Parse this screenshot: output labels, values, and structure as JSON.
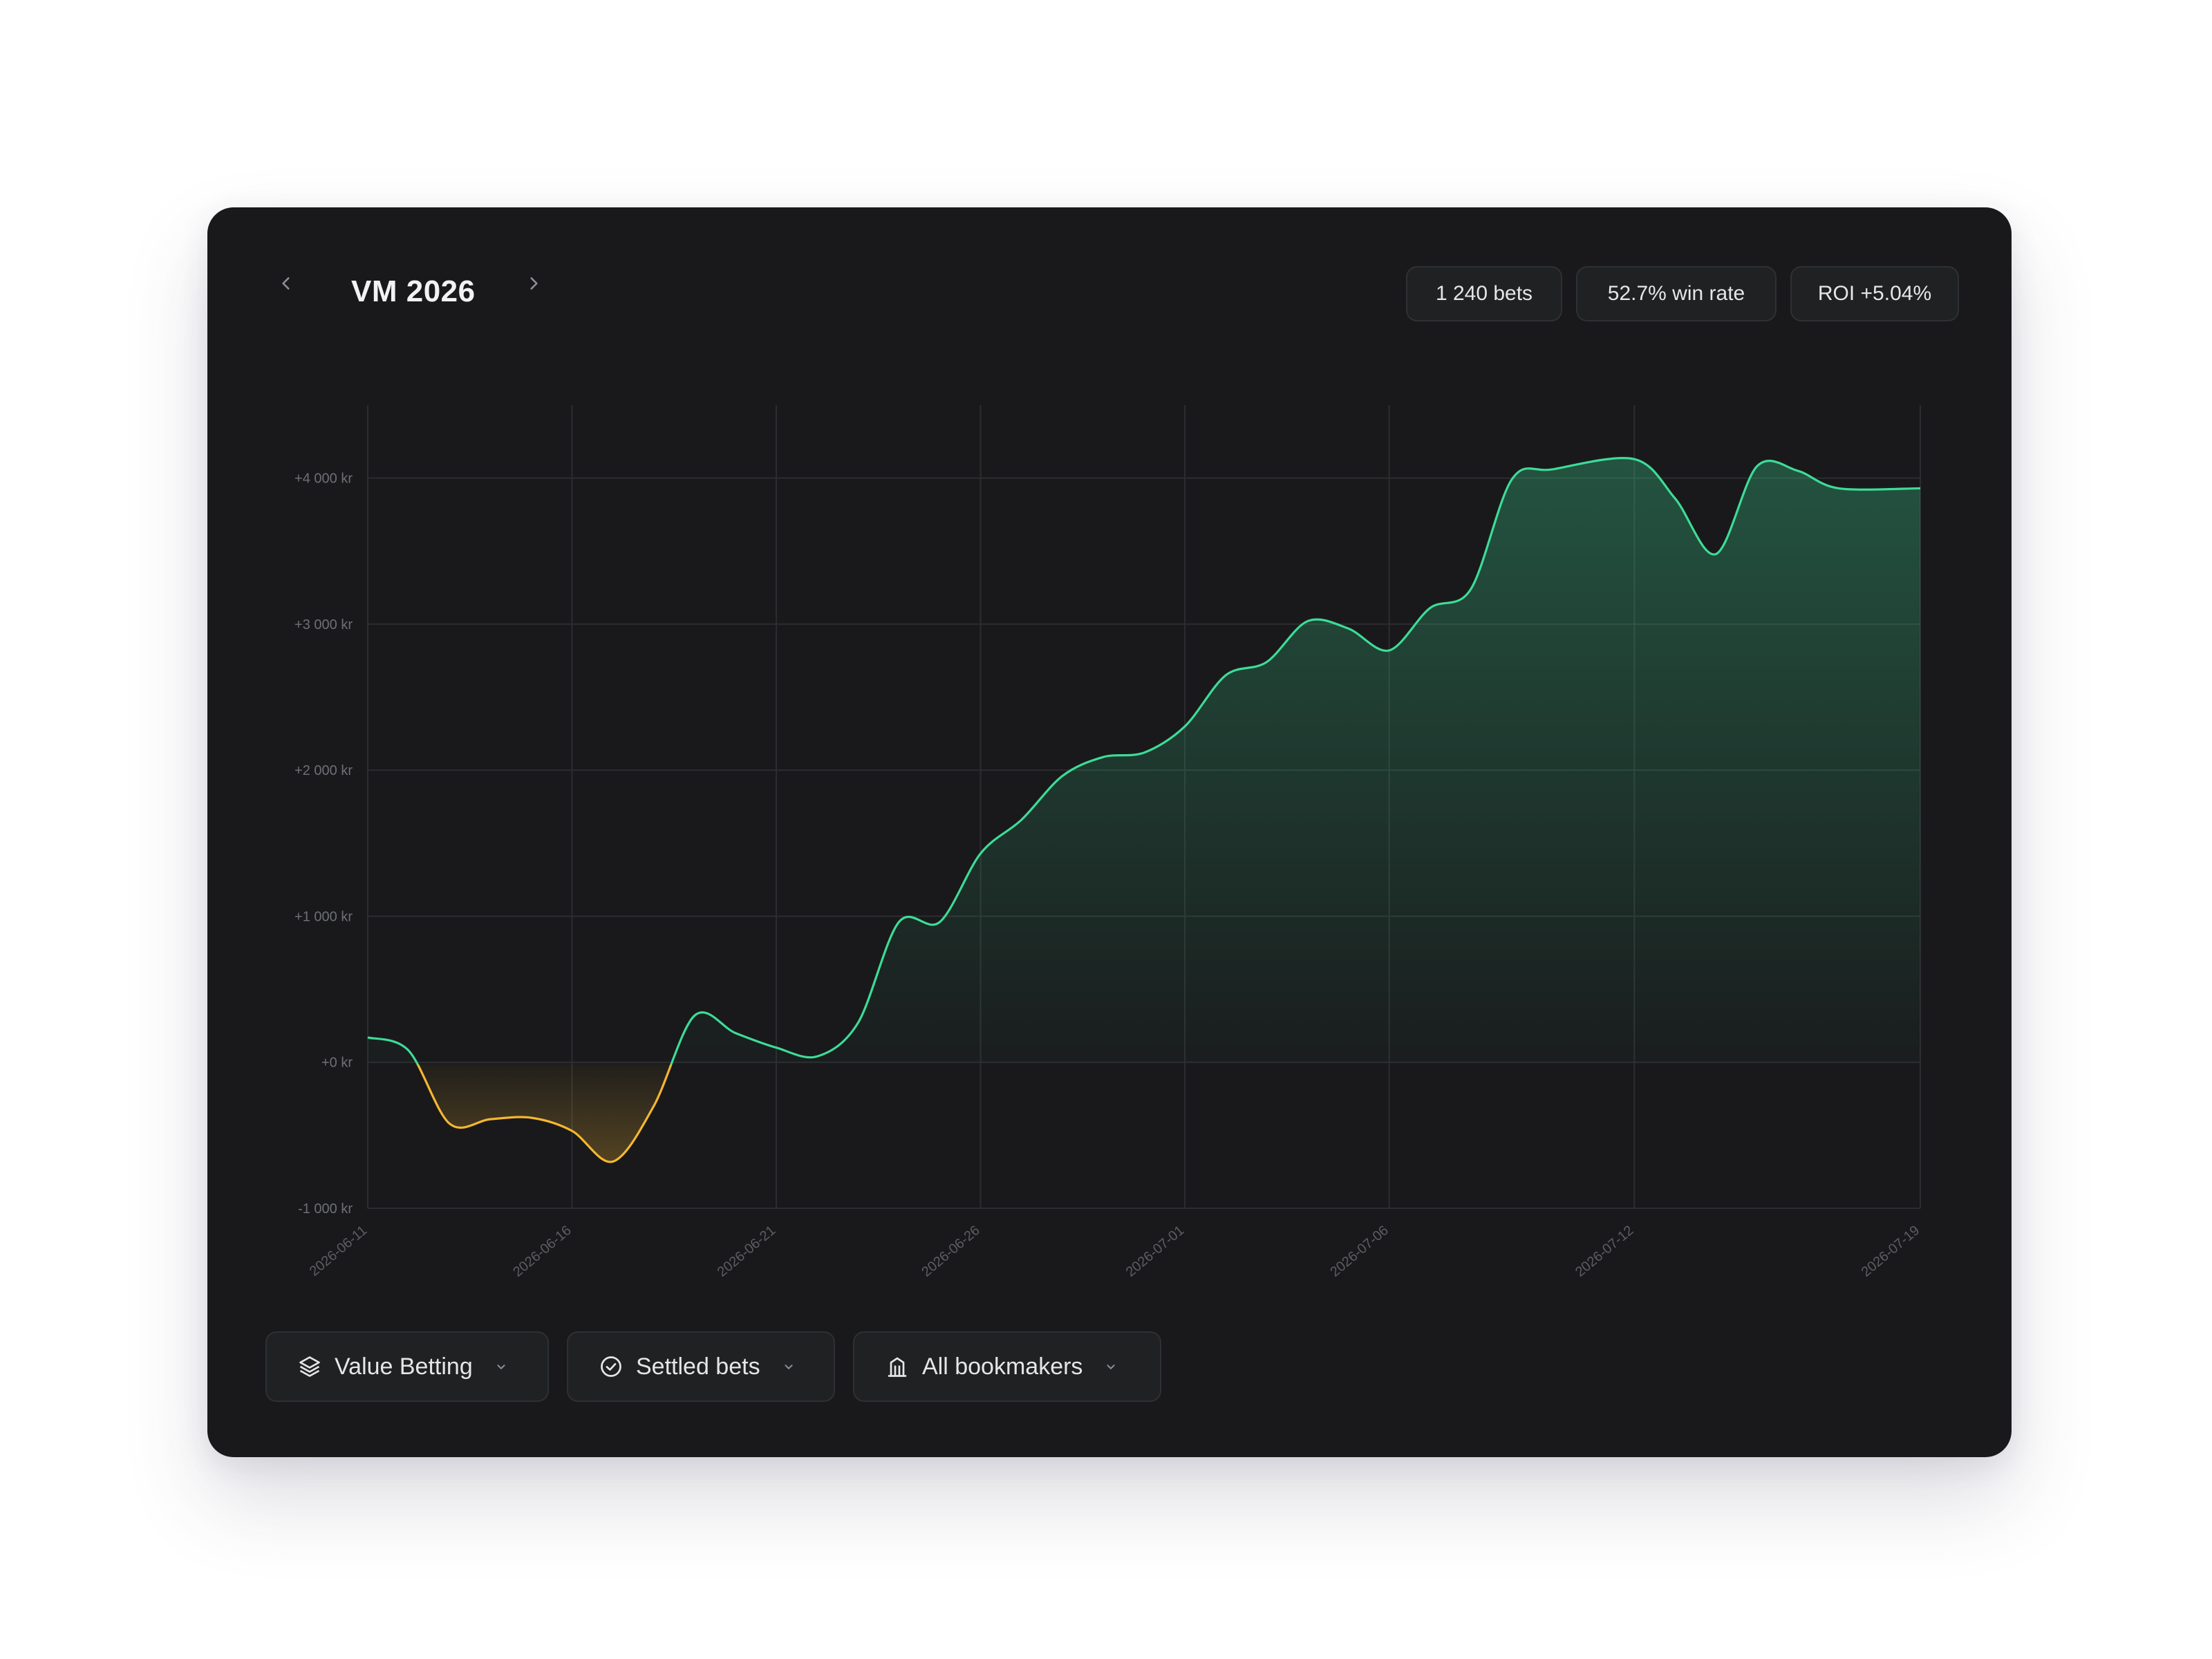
{
  "header": {
    "title": "VM 2026",
    "prev_icon": "chevron-left-icon",
    "next_icon": "chevron-right-icon",
    "stats": {
      "bets": "1 240 bets",
      "win_rate": "52.7% win rate",
      "roi": "ROI +5.04%"
    }
  },
  "colors": {
    "background": "#19191b",
    "profit_line": "#3ddc97",
    "loss_line": "#f5b731",
    "grid": "#2c2d30"
  },
  "chart_data": {
    "type": "area",
    "title": "",
    "xlabel": "",
    "ylabel": "",
    "ylim": [
      -1000,
      4500
    ],
    "y_ticks": [
      "+4 000 kr",
      "+3 000 kr",
      "+2 000 kr",
      "+1 000 kr",
      "+0 kr",
      "-1 000 kr"
    ],
    "y_tick_values": [
      4000,
      3000,
      2000,
      1000,
      0,
      -1000
    ],
    "x_ticks": [
      "2026-06-11",
      "2026-06-16",
      "2026-06-21",
      "2026-06-26",
      "2026-07-01",
      "2026-07-06",
      "2026-07-12",
      "2026-07-19"
    ],
    "grid": true,
    "series": [
      {
        "x": [
          "2026-06-11",
          "2026-06-12",
          "2026-06-13",
          "2026-06-14",
          "2026-06-15",
          "2026-06-16",
          "2026-06-17",
          "2026-06-18",
          "2026-06-19",
          "2026-06-20",
          "2026-06-21",
          "2026-06-22",
          "2026-06-23",
          "2026-06-24",
          "2026-06-25",
          "2026-06-26",
          "2026-06-27",
          "2026-06-28",
          "2026-06-29",
          "2026-06-30",
          "2026-07-01",
          "2026-07-02",
          "2026-07-03",
          "2026-07-04",
          "2026-07-05",
          "2026-07-06",
          "2026-07-07",
          "2026-07-08",
          "2026-07-09",
          "2026-07-10",
          "2026-07-12",
          "2026-07-13",
          "2026-07-14",
          "2026-07-15",
          "2026-07-16",
          "2026-07-17",
          "2026-07-19"
        ],
        "values": [
          170,
          80,
          -420,
          -390,
          -380,
          -470,
          -680,
          -300,
          320,
          200,
          100,
          40,
          270,
          960,
          960,
          1430,
          1660,
          1960,
          2090,
          2120,
          2300,
          2650,
          2740,
          3020,
          2970,
          2820,
          3110,
          3240,
          3990,
          4060,
          4130,
          3860,
          3480,
          4080,
          4050,
          3930,
          3930
        ]
      }
    ]
  },
  "filters": {
    "strategy": "Value Betting",
    "status": "Settled bets",
    "bookmakers": "All bookmakers"
  }
}
